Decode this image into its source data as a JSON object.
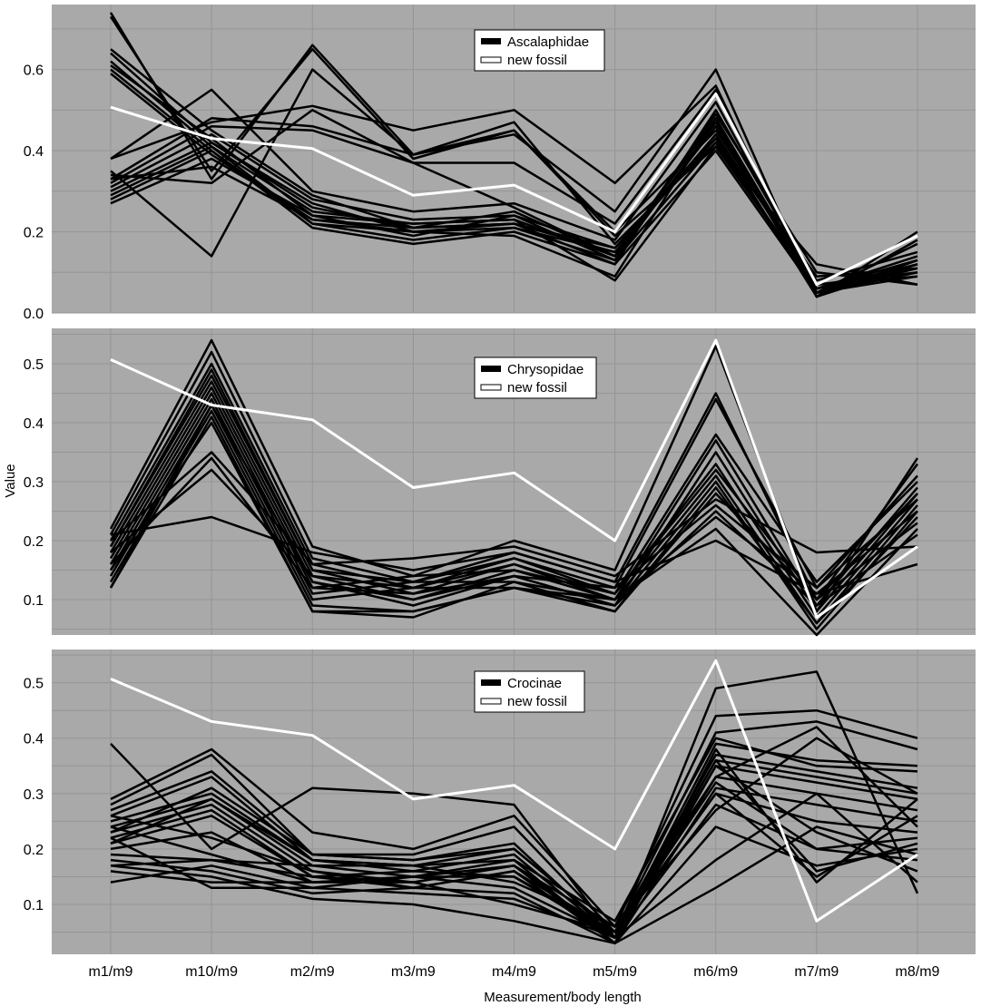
{
  "figure": {
    "xlabel": "Measurement/body length",
    "ylabel": "Value",
    "categories": [
      "m1/m9",
      "m10/m9",
      "m2/m9",
      "m3/m9",
      "m4/m9",
      "m5/m9",
      "m6/m9",
      "m7/m9",
      "m8/m9"
    ]
  },
  "colors": {
    "panel_bg": "#a9a9a9",
    "grid": "#959595",
    "family_line": "#000000",
    "fossil_line": "#ffffff"
  },
  "chart_data": [
    {
      "type": "line",
      "legend": [
        "Ascalaphidae",
        "new fossil"
      ],
      "legend_position": "top-center",
      "ylim": [
        0.0,
        0.76
      ],
      "yticks": [
        0.0,
        0.2,
        0.4,
        0.6
      ],
      "yticklabels": [
        "0.0",
        "0.2",
        "0.4",
        "0.6"
      ],
      "categories": [
        "m1/m9",
        "m10/m9",
        "m2/m9",
        "m3/m9",
        "m4/m9",
        "m5/m9",
        "m6/m9",
        "m7/m9",
        "m8/m9"
      ],
      "highlight": {
        "name": "new fossil",
        "values": [
          0.507,
          0.43,
          0.405,
          0.29,
          0.315,
          0.2,
          0.54,
          0.07,
          0.19
        ]
      },
      "series": [
        {
          "values": [
            0.74,
            0.33,
            0.66,
            0.39,
            0.47,
            0.17,
            0.42,
            0.05,
            0.12
          ]
        },
        {
          "values": [
            0.73,
            0.35,
            0.65,
            0.38,
            0.45,
            0.19,
            0.41,
            0.06,
            0.11
          ]
        },
        {
          "values": [
            0.65,
            0.45,
            0.29,
            0.21,
            0.22,
            0.16,
            0.43,
            0.05,
            0.1
          ]
        },
        {
          "values": [
            0.64,
            0.42,
            0.27,
            0.2,
            0.21,
            0.15,
            0.44,
            0.04,
            0.12
          ]
        },
        {
          "values": [
            0.62,
            0.41,
            0.25,
            0.22,
            0.23,
            0.14,
            0.48,
            0.06,
            0.14
          ]
        },
        {
          "values": [
            0.61,
            0.43,
            0.24,
            0.19,
            0.24,
            0.13,
            0.47,
            0.05,
            0.1
          ]
        },
        {
          "values": [
            0.6,
            0.4,
            0.22,
            0.2,
            0.22,
            0.12,
            0.5,
            0.07,
            0.09
          ]
        },
        {
          "values": [
            0.59,
            0.39,
            0.23,
            0.21,
            0.25,
            0.14,
            0.46,
            0.05,
            0.11
          ]
        },
        {
          "values": [
            0.38,
            0.55,
            0.3,
            0.25,
            0.27,
            0.18,
            0.52,
            0.06,
            0.13
          ]
        },
        {
          "values": [
            0.38,
            0.47,
            0.51,
            0.45,
            0.5,
            0.32,
            0.56,
            0.04,
            0.18
          ]
        },
        {
          "values": [
            0.35,
            0.14,
            0.6,
            0.39,
            0.44,
            0.25,
            0.6,
            0.04,
            0.2
          ]
        },
        {
          "values": [
            0.34,
            0.32,
            0.5,
            0.37,
            0.37,
            0.22,
            0.55,
            0.05,
            0.17
          ]
        },
        {
          "values": [
            0.33,
            0.48,
            0.46,
            0.39,
            0.45,
            0.2,
            0.45,
            0.08,
            0.15
          ]
        },
        {
          "values": [
            0.32,
            0.46,
            0.45,
            0.37,
            0.26,
            0.14,
            0.49,
            0.1,
            0.07
          ]
        },
        {
          "values": [
            0.31,
            0.44,
            0.28,
            0.23,
            0.24,
            0.16,
            0.43,
            0.09,
            0.11
          ]
        },
        {
          "values": [
            0.3,
            0.42,
            0.26,
            0.21,
            0.22,
            0.15,
            0.44,
            0.07,
            0.1
          ]
        },
        {
          "values": [
            0.29,
            0.41,
            0.22,
            0.18,
            0.21,
            0.13,
            0.42,
            0.06,
            0.12
          ]
        },
        {
          "values": [
            0.28,
            0.4,
            0.21,
            0.17,
            0.2,
            0.12,
            0.4,
            0.05,
            0.09
          ]
        },
        {
          "values": [
            0.27,
            0.38,
            0.24,
            0.22,
            0.23,
            0.08,
            0.41,
            0.12,
            0.07
          ]
        },
        {
          "values": [
            0.33,
            0.36,
            0.23,
            0.2,
            0.19,
            0.09,
            0.48,
            0.04,
            0.13
          ]
        }
      ]
    },
    {
      "type": "line",
      "legend": [
        "Chrysopidae",
        "new fossil"
      ],
      "legend_position": "top-center",
      "ylim": [
        0.04,
        0.56
      ],
      "yticks": [
        0.1,
        0.2,
        0.3,
        0.4,
        0.5
      ],
      "yticklabels": [
        "0.1",
        "0.2",
        "0.3",
        "0.4",
        "0.5"
      ],
      "categories": [
        "m1/m9",
        "m10/m9",
        "m2/m9",
        "m3/m9",
        "m4/m9",
        "m5/m9",
        "m6/m9",
        "m7/m9",
        "m8/m9"
      ],
      "highlight": {
        "name": "new fossil",
        "values": [
          0.507,
          0.43,
          0.405,
          0.29,
          0.315,
          0.2,
          0.54,
          0.07,
          0.19
        ]
      },
      "series": [
        {
          "values": [
            0.22,
            0.54,
            0.19,
            0.14,
            0.2,
            0.15,
            0.53,
            0.08,
            0.34
          ]
        },
        {
          "values": [
            0.21,
            0.52,
            0.17,
            0.13,
            0.18,
            0.13,
            0.45,
            0.1,
            0.33
          ]
        },
        {
          "values": [
            0.2,
            0.5,
            0.16,
            0.12,
            0.17,
            0.12,
            0.44,
            0.12,
            0.31
          ]
        },
        {
          "values": [
            0.19,
            0.49,
            0.15,
            0.11,
            0.16,
            0.11,
            0.38,
            0.13,
            0.3
          ]
        },
        {
          "values": [
            0.18,
            0.47,
            0.14,
            0.1,
            0.15,
            0.1,
            0.37,
            0.09,
            0.29
          ]
        },
        {
          "values": [
            0.17,
            0.46,
            0.13,
            0.09,
            0.14,
            0.09,
            0.35,
            0.08,
            0.28
          ]
        },
        {
          "values": [
            0.16,
            0.45,
            0.12,
            0.14,
            0.15,
            0.11,
            0.33,
            0.07,
            0.27
          ]
        },
        {
          "values": [
            0.15,
            0.44,
            0.11,
            0.13,
            0.13,
            0.1,
            0.31,
            0.06,
            0.26
          ]
        },
        {
          "values": [
            0.14,
            0.43,
            0.1,
            0.12,
            0.12,
            0.09,
            0.3,
            0.05,
            0.25
          ]
        },
        {
          "values": [
            0.13,
            0.42,
            0.09,
            0.08,
            0.12,
            0.08,
            0.29,
            0.06,
            0.24
          ]
        },
        {
          "values": [
            0.12,
            0.41,
            0.08,
            0.07,
            0.13,
            0.08,
            0.28,
            0.1,
            0.23
          ]
        },
        {
          "values": [
            0.2,
            0.35,
            0.16,
            0.17,
            0.19,
            0.14,
            0.27,
            0.18,
            0.19
          ]
        },
        {
          "values": [
            0.21,
            0.24,
            0.18,
            0.15,
            0.18,
            0.13,
            0.2,
            0.11,
            0.16
          ]
        },
        {
          "values": [
            0.18,
            0.32,
            0.14,
            0.12,
            0.16,
            0.1,
            0.22,
            0.04,
            0.22
          ]
        },
        {
          "values": [
            0.16,
            0.34,
            0.12,
            0.11,
            0.14,
            0.09,
            0.25,
            0.09,
            0.21
          ]
        },
        {
          "values": [
            0.15,
            0.4,
            0.08,
            0.08,
            0.12,
            0.1,
            0.24,
            0.11,
            0.25
          ]
        },
        {
          "values": [
            0.12,
            0.43,
            0.13,
            0.1,
            0.14,
            0.12,
            0.26,
            0.12,
            0.27
          ]
        },
        {
          "values": [
            0.19,
            0.48,
            0.15,
            0.13,
            0.17,
            0.11,
            0.32,
            0.1,
            0.28
          ]
        }
      ]
    },
    {
      "type": "line",
      "legend": [
        "Crocinae",
        "new fossil"
      ],
      "legend_position": "top-center",
      "ylim": [
        0.01,
        0.56
      ],
      "yticks": [
        0.1,
        0.2,
        0.3,
        0.4,
        0.5
      ],
      "yticklabels": [
        "0.1",
        "0.2",
        "0.3",
        "0.4",
        "0.5"
      ],
      "categories": [
        "m1/m9",
        "m10/m9",
        "m2/m9",
        "m3/m9",
        "m4/m9",
        "m5/m9",
        "m6/m9",
        "m7/m9",
        "m8/m9"
      ],
      "highlight": {
        "name": "new fossil",
        "values": [
          0.507,
          0.43,
          0.405,
          0.29,
          0.315,
          0.2,
          0.54,
          0.07,
          0.19
        ]
      },
      "series": [
        {
          "values": [
            0.39,
            0.2,
            0.31,
            0.3,
            0.28,
            0.04,
            0.49,
            0.52,
            0.12
          ]
        },
        {
          "values": [
            0.29,
            0.38,
            0.23,
            0.2,
            0.26,
            0.06,
            0.44,
            0.45,
            0.4
          ]
        },
        {
          "values": [
            0.28,
            0.37,
            0.19,
            0.19,
            0.24,
            0.05,
            0.41,
            0.43,
            0.38
          ]
        },
        {
          "values": [
            0.27,
            0.34,
            0.19,
            0.18,
            0.21,
            0.04,
            0.39,
            0.36,
            0.35
          ]
        },
        {
          "values": [
            0.26,
            0.33,
            0.18,
            0.17,
            0.2,
            0.05,
            0.37,
            0.34,
            0.31
          ]
        },
        {
          "values": [
            0.25,
            0.3,
            0.18,
            0.16,
            0.19,
            0.04,
            0.36,
            0.33,
            0.3
          ]
        },
        {
          "values": [
            0.24,
            0.29,
            0.17,
            0.15,
            0.18,
            0.03,
            0.35,
            0.32,
            0.29
          ]
        },
        {
          "values": [
            0.23,
            0.28,
            0.16,
            0.14,
            0.17,
            0.04,
            0.33,
            0.3,
            0.27
          ]
        },
        {
          "values": [
            0.22,
            0.27,
            0.15,
            0.13,
            0.16,
            0.03,
            0.31,
            0.28,
            0.25
          ]
        },
        {
          "values": [
            0.21,
            0.26,
            0.15,
            0.16,
            0.15,
            0.05,
            0.3,
            0.25,
            0.23
          ]
        },
        {
          "values": [
            0.2,
            0.23,
            0.14,
            0.15,
            0.13,
            0.04,
            0.28,
            0.2,
            0.22
          ]
        },
        {
          "values": [
            0.18,
            0.16,
            0.12,
            0.13,
            0.12,
            0.03,
            0.24,
            0.17,
            0.2
          ]
        },
        {
          "values": [
            0.17,
            0.15,
            0.11,
            0.1,
            0.07,
            0.03,
            0.13,
            0.24,
            0.19
          ]
        },
        {
          "values": [
            0.14,
            0.17,
            0.13,
            0.12,
            0.11,
            0.04,
            0.18,
            0.3,
            0.14
          ]
        },
        {
          "values": [
            0.16,
            0.14,
            0.14,
            0.14,
            0.1,
            0.05,
            0.3,
            0.15,
            0.26
          ]
        },
        {
          "values": [
            0.19,
            0.18,
            0.17,
            0.17,
            0.14,
            0.06,
            0.33,
            0.42,
            0.24
          ]
        },
        {
          "values": [
            0.23,
            0.31,
            0.19,
            0.18,
            0.2,
            0.05,
            0.36,
            0.16,
            0.21
          ]
        },
        {
          "values": [
            0.22,
            0.13,
            0.13,
            0.15,
            0.17,
            0.03,
            0.38,
            0.14,
            0.29
          ]
        },
        {
          "values": [
            0.26,
            0.22,
            0.16,
            0.13,
            0.16,
            0.05,
            0.32,
            0.2,
            0.18
          ]
        },
        {
          "values": [
            0.21,
            0.29,
            0.18,
            0.17,
            0.18,
            0.07,
            0.4,
            0.35,
            0.34
          ]
        },
        {
          "values": [
            0.24,
            0.19,
            0.14,
            0.15,
            0.15,
            0.04,
            0.35,
            0.23,
            0.16
          ]
        },
        {
          "values": [
            0.17,
            0.18,
            0.15,
            0.14,
            0.17,
            0.06,
            0.27,
            0.4,
            0.3
          ]
        }
      ]
    }
  ]
}
